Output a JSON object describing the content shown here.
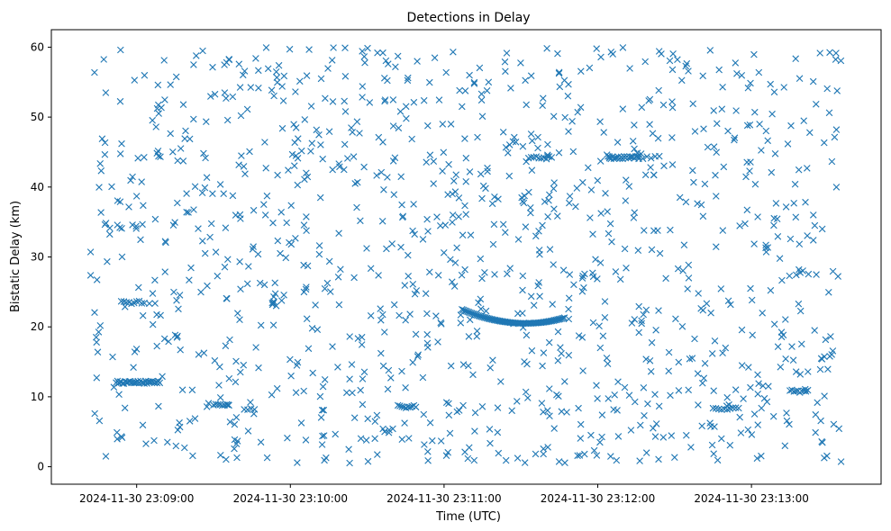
{
  "chart_data": {
    "type": "scatter",
    "title": "Detections in Delay",
    "xlabel": "Time (UTC)",
    "ylabel": "Bistatic Delay (km)",
    "marker": "x",
    "color": "#1f77b4",
    "xlim_seconds": [
      -33.3,
      290.6
    ],
    "ylim": [
      -2.5,
      62.5
    ],
    "x_ticks": [
      {
        "value": 0,
        "label": "2024-11-30 23:09:00"
      },
      {
        "value": 60,
        "label": "2024-11-30 23:10:00"
      },
      {
        "value": 120,
        "label": "2024-11-30 23:11:00"
      },
      {
        "value": 180,
        "label": "2024-11-30 23:12:00"
      },
      {
        "value": 240,
        "label": "2024-11-30 23:13:00"
      }
    ],
    "y_ticks": [
      0,
      10,
      20,
      30,
      40,
      50,
      60
    ],
    "x_range_seconds": [
      -18,
      275
    ],
    "n_random_points": 1150,
    "clusters": [
      {
        "t_start": -8,
        "t_end": 9,
        "delay": 12.1,
        "count": 35
      },
      {
        "t_start": -6,
        "t_end": 3,
        "delay": 23.5,
        "count": 10
      },
      {
        "t_start": 30,
        "t_end": 36,
        "delay": 8.8,
        "count": 8
      },
      {
        "t_start": 42,
        "t_end": 46,
        "delay": 8.3,
        "count": 4
      },
      {
        "t_start": 102,
        "t_end": 109,
        "delay": 8.6,
        "count": 10
      },
      {
        "t_start": 184,
        "t_end": 196,
        "delay": 44.2,
        "count": 22
      },
      {
        "t_start": 153,
        "t_end": 162,
        "delay": 44.2,
        "count": 10
      },
      {
        "t_start": 255,
        "t_end": 262,
        "delay": 10.8,
        "count": 10
      },
      {
        "t_start": 225,
        "t_end": 235,
        "delay": 8.3,
        "count": 10
      },
      {
        "t_start": 196,
        "t_end": 204,
        "delay": 44.2,
        "count": 6
      }
    ],
    "arc": {
      "t_start": 127,
      "t_end": 167,
      "t_min": 152,
      "delay_min": 20.5,
      "delay_left": 22.5,
      "delay_right": 21.3,
      "count": 75
    }
  }
}
